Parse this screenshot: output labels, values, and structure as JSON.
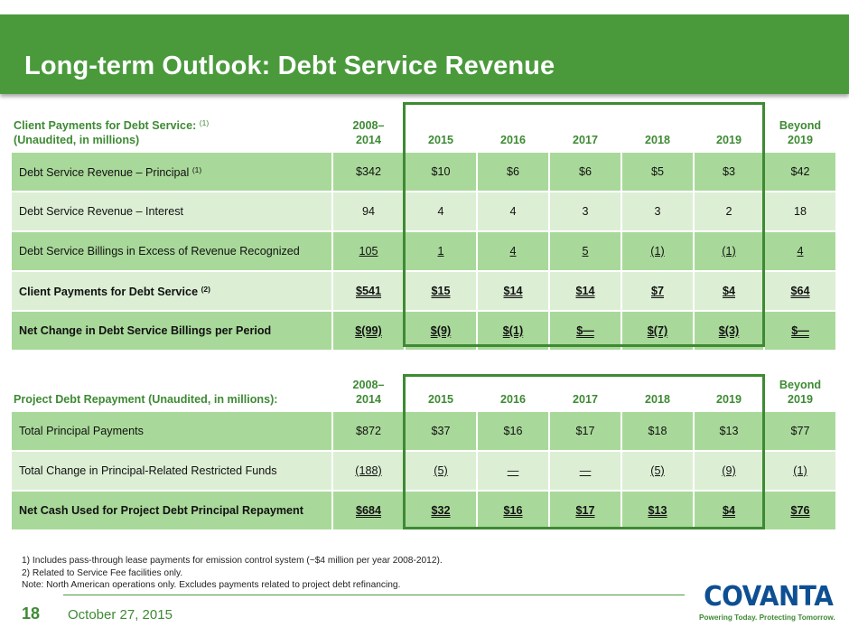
{
  "header": {
    "title": "Long-term Outlook: Debt Service Revenue"
  },
  "table1": {
    "header_label_line1": "Client Payments for Debt Service:",
    "header_label_sup": "(1)",
    "header_label_line2": "(Unaudited, in millions)",
    "columns": [
      {
        "line1": "2008–",
        "line2": "2014"
      },
      {
        "line1": "",
        "line2": "2015"
      },
      {
        "line1": "",
        "line2": "2016"
      },
      {
        "line1": "",
        "line2": "2017"
      },
      {
        "line1": "",
        "line2": "2018"
      },
      {
        "line1": "",
        "line2": "2019"
      },
      {
        "line1": "Beyond",
        "line2": "2019"
      }
    ],
    "rows": [
      {
        "label": "Debt Service Revenue – Principal",
        "sup": "(1)",
        "values": [
          "$342",
          "$10",
          "$6",
          "$6",
          "$5",
          "$3",
          "$42"
        ]
      },
      {
        "label": "Debt Service Revenue – Interest",
        "values": [
          "94",
          "4",
          "4",
          "3",
          "3",
          "2",
          "18"
        ]
      },
      {
        "label": "Debt Service Billings in Excess of Revenue Recognized",
        "values": [
          "105",
          "1",
          "4",
          "5",
          "(1)",
          "(1)",
          "4"
        ]
      },
      {
        "label": "Client Payments for Debt Service",
        "sup": "(2)",
        "values": [
          "$541",
          "$15",
          "$14",
          "$14",
          "$7",
          "$4",
          "$64"
        ]
      },
      {
        "label": "Net Change in Debt Service Billings per Period",
        "values": [
          "$(99)",
          "$(9)",
          "$(1)",
          "$—",
          "$(7)",
          "$(3)",
          "$—"
        ]
      }
    ]
  },
  "table2": {
    "header_label": "Project Debt Repayment (Unaudited, in millions):",
    "columns": [
      {
        "line1": "2008–",
        "line2": "2014"
      },
      {
        "line1": "",
        "line2": "2015"
      },
      {
        "line1": "",
        "line2": "2016"
      },
      {
        "line1": "",
        "line2": "2017"
      },
      {
        "line1": "",
        "line2": "2018"
      },
      {
        "line1": "",
        "line2": "2019"
      },
      {
        "line1": "Beyond",
        "line2": "2019"
      }
    ],
    "rows": [
      {
        "label": "Total Principal Payments",
        "values": [
          "$872",
          "$37",
          "$16",
          "$17",
          "$18",
          "$13",
          "$77"
        ]
      },
      {
        "label": "Total Change in Principal-Related Restricted Funds",
        "values": [
          "(188)",
          "(5)",
          "—",
          "—",
          "(5)",
          "(9)",
          "(1)"
        ]
      },
      {
        "label": "Net Cash Used for Project Debt Principal Repayment",
        "values": [
          "$684",
          "$32",
          "$16",
          "$17",
          "$13",
          "$4",
          "$76"
        ]
      }
    ]
  },
  "footnotes": [
    "1)  Includes pass-through lease payments for emission control system (~$4 million per year 2008-2012).",
    "2)  Related to Service Fee facilities only.",
    "Note: North American operations only. Excludes payments related to project debt refinancing."
  ],
  "footer": {
    "page_number": "18",
    "date": "October 27, 2015"
  },
  "logo": {
    "wordmark": "COVANTA",
    "tagline": "Powering Today. Protecting Tomorrow."
  },
  "colors": {
    "brand_green": "#4a9a3c",
    "text_green": "#3e8a34",
    "row_dark": "#a9d99a",
    "row_light": "#dcefd5",
    "logo_blue": "#0e4f93"
  }
}
